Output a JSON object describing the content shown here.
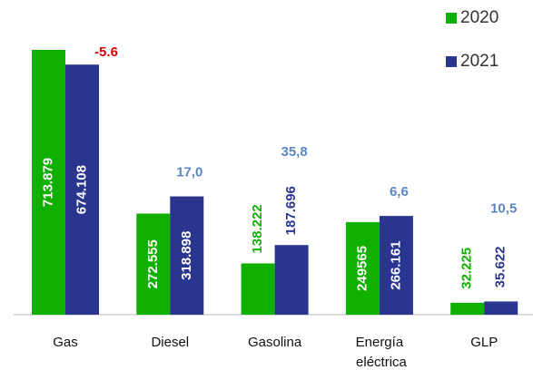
{
  "chart_data": {
    "type": "bar",
    "categories": [
      "Gas",
      "Diesel",
      "Gasolina",
      "Energía eléctrica",
      "GLP"
    ],
    "series": [
      {
        "name": "2020",
        "color": "#10b000",
        "values": [
          713879,
          272555,
          138222,
          249565,
          32225
        ],
        "value_labels": [
          "713.879",
          "272.555",
          "138.222",
          "249565",
          "32.225"
        ]
      },
      {
        "name": "2021",
        "color": "#2a3590",
        "values": [
          674108,
          318898,
          187696,
          266161,
          35622
        ],
        "value_labels": [
          "674.108",
          "318.898",
          "187.696",
          "266.161",
          "35.622"
        ]
      }
    ],
    "annotations": [
      {
        "text": "-5.6",
        "color": "#e00000"
      },
      {
        "text": "17,0",
        "color": "#5b87c5"
      },
      {
        "text": "35,8",
        "color": "#5b87c5"
      },
      {
        "text": "6,6",
        "color": "#5b87c5"
      },
      {
        "text": "10,5",
        "color": "#5b87c5"
      }
    ],
    "legend": "top-right"
  }
}
